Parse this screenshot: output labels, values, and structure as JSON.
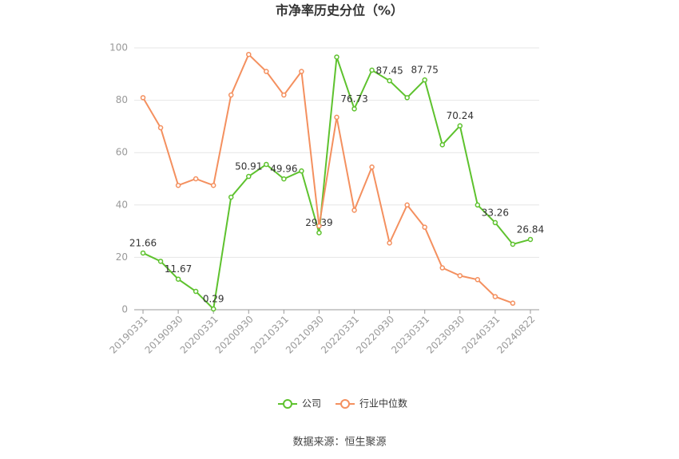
{
  "chart_data": {
    "type": "line",
    "title": "市净率历史分位（%）",
    "categories": [
      "20190331",
      null,
      "20190930",
      null,
      "20200331",
      null,
      "20200930",
      null,
      "20210331",
      null,
      "20210930",
      null,
      "20220331",
      null,
      "20220930",
      null,
      "20230331",
      null,
      "20230930",
      null,
      "20240331",
      null,
      "20240822"
    ],
    "series": [
      {
        "name": "公司",
        "color": "#5ec22e",
        "values": [
          21.66,
          18.5,
          11.67,
          7,
          0.29,
          43,
          50.91,
          55.5,
          49.96,
          53,
          29.39,
          96.5,
          76.73,
          91.5,
          87.45,
          81,
          87.75,
          63,
          70.24,
          40,
          33.26,
          25,
          26.84
        ],
        "value_labels": [
          "21.66",
          null,
          "11.67",
          null,
          "0.29",
          null,
          "50.91",
          null,
          "49.96",
          null,
          "29.39",
          null,
          "76.73",
          null,
          "87.45",
          null,
          "87.75",
          null,
          "70.24",
          null,
          "33.26",
          null,
          "26.84"
        ]
      },
      {
        "name": "行业中位数",
        "color": "#f4905f",
        "values": [
          81,
          69.5,
          47.5,
          50,
          47.5,
          82,
          97.5,
          91,
          82,
          91,
          32,
          73.5,
          38,
          54.5,
          25.5,
          40,
          31.5,
          16,
          13,
          11.5,
          5,
          2.5,
          null
        ]
      }
    ],
    "ylim": [
      0,
      100
    ],
    "yticks": [
      0,
      20,
      40,
      60,
      80,
      100
    ],
    "grid": true,
    "legend": "bottom",
    "source": "数据来源：恒生聚源"
  }
}
